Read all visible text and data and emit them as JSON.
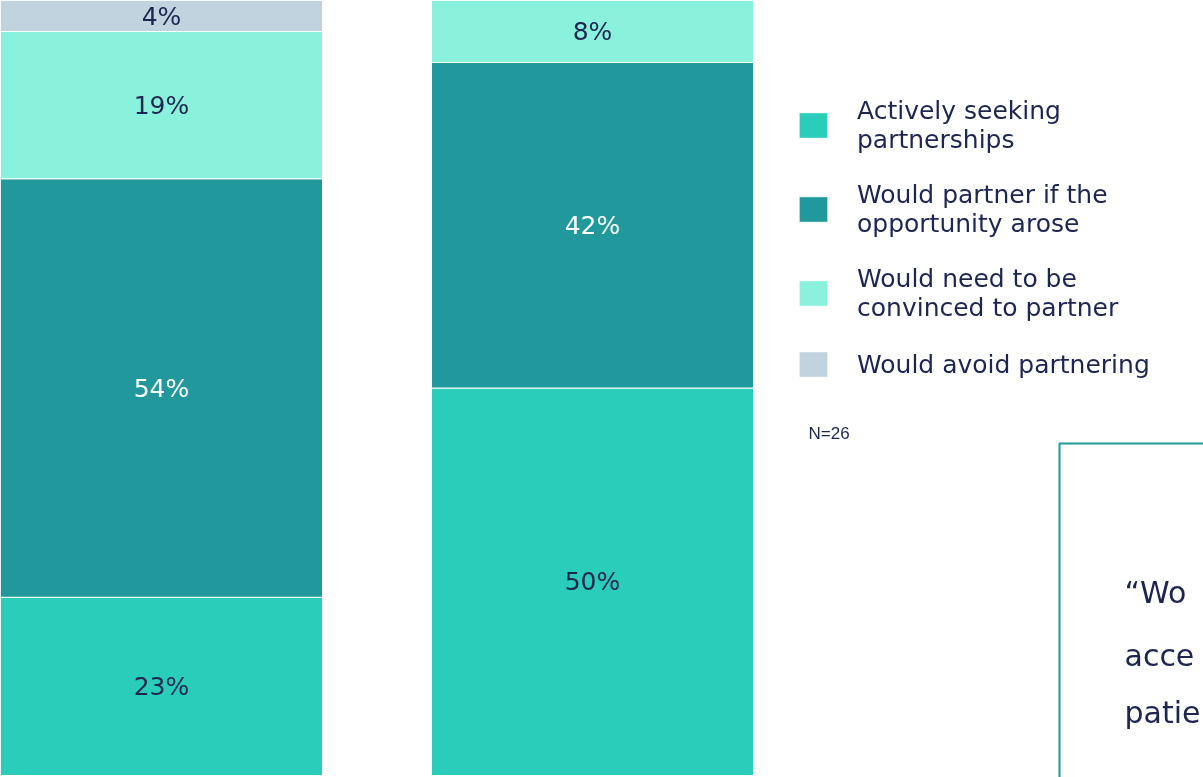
{
  "chart_data": {
    "type": "bar",
    "stacked": true,
    "categories": [
      null,
      null
    ],
    "series": [
      {
        "name": "Actively seeking partnerships",
        "color": "#29cdb9",
        "values": [
          23,
          50
        ],
        "value_labels": [
          "23%",
          "50%"
        ]
      },
      {
        "name": "Would partner if the opportunity arose",
        "color": "#21999c",
        "values": [
          54,
          42
        ],
        "value_labels": [
          "54%",
          "42%"
        ]
      },
      {
        "name": "Would need to be convinced to partner",
        "color": "#8af2dc",
        "values": [
          19,
          8
        ],
        "value_labels": [
          "19%",
          "8%"
        ]
      },
      {
        "name": "Would avoid partnering",
        "color": "#c0d3de",
        "values": [
          4,
          null
        ],
        "value_labels": [
          "4%",
          null
        ]
      }
    ],
    "data_labels": true,
    "legend": "right",
    "grid": false,
    "tick_labels": false,
    "annotations": [
      "N=26",
      "“Wo",
      "acce",
      "patie"
    ]
  }
}
